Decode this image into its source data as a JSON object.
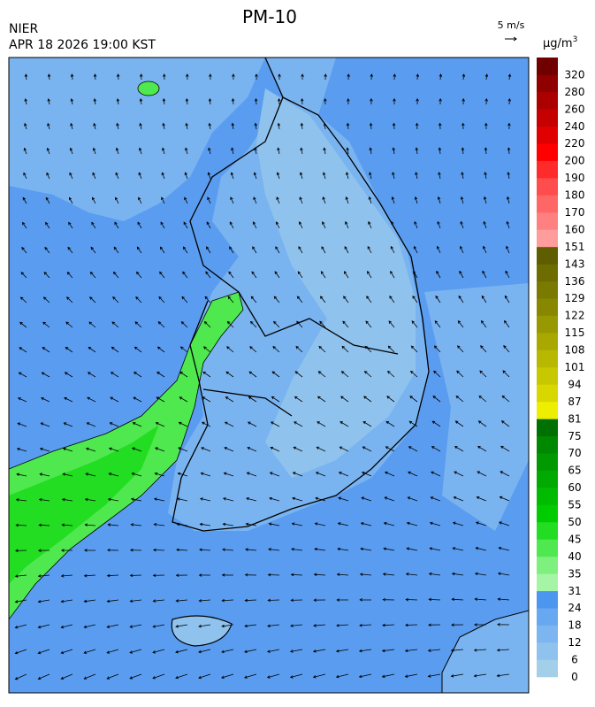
{
  "header": {
    "title": "PM-10",
    "agency": "NIER",
    "datetime": "APR 18 2026 19:00 KST",
    "wind_scale": "5 m/s",
    "unit": "μg/m",
    "unit_power": "3"
  },
  "colorbar": {
    "levels": [
      0,
      6,
      12,
      18,
      24,
      31,
      35,
      40,
      45,
      50,
      55,
      60,
      65,
      70,
      75,
      81,
      87,
      94,
      101,
      108,
      115,
      122,
      129,
      136,
      143,
      151,
      160,
      170,
      180,
      190,
      200,
      220,
      240,
      260,
      280,
      320
    ],
    "colors": [
      "#a3cfe8",
      "#8fc3ee",
      "#7cb5f0",
      "#68a8f0",
      "#4d96f0",
      "#a6f5a6",
      "#7ef07e",
      "#4fe84f",
      "#22dd22",
      "#00cc00",
      "#00bb00",
      "#00aa00",
      "#009900",
      "#008800",
      "#007000",
      "#eeee00",
      "#d8d800",
      "#c8c800",
      "#b8b800",
      "#a8a800",
      "#989800",
      "#888800",
      "#7a7a00",
      "#6c6c00",
      "#5e5e00",
      "#ff9c9c",
      "#ff8080",
      "#ff6666",
      "#ff4c4c",
      "#ff2a2a",
      "#ff0000",
      "#e00000",
      "#c60000",
      "#ac0000",
      "#900000",
      "#700000"
    ]
  }
}
